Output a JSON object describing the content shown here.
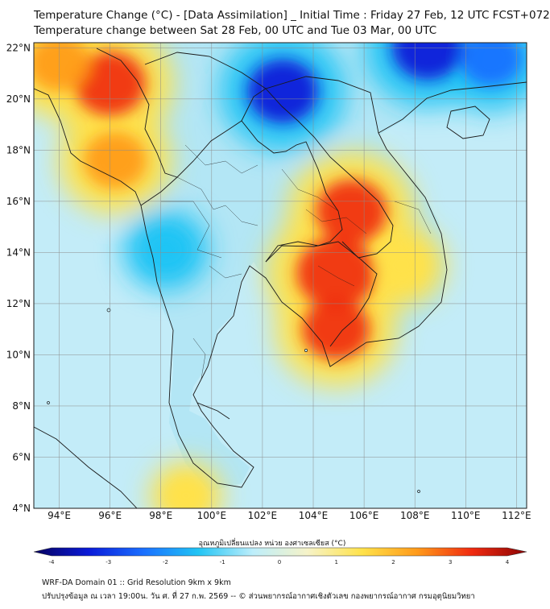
{
  "header": {
    "title_line1": "Temperature Change (°C) - [Data Assimilation] _ Initial Time : Friday 27 Feb, 12 UTC FCST+072",
    "title_line2": "Temperature change between Sat 28 Feb, 00 UTC and Tue 03 Mar, 00 UTC"
  },
  "map": {
    "lat_labels": [
      "22°N",
      "20°N",
      "18°N",
      "16°N",
      "14°N",
      "12°N",
      "10°N",
      "8°N",
      "6°N",
      "4°N"
    ],
    "lat_values": [
      22,
      20,
      18,
      16,
      14,
      12,
      10,
      8,
      6,
      4
    ],
    "lon_labels": [
      "94°E",
      "96°E",
      "98°E",
      "100°E",
      "102°E",
      "104°E",
      "106°E",
      "108°E",
      "110°E",
      "112°E"
    ],
    "lon_values": [
      94,
      96,
      98,
      100,
      102,
      104,
      106,
      108,
      110,
      112
    ],
    "lon_range": [
      93,
      112.4
    ],
    "lat_range": [
      4,
      22.2
    ],
    "colors": {
      "ocean_base": "#c3ecf8",
      "land_base": "#a9e3f4",
      "border": "#1a1a1a",
      "grid": "#8c8c8c"
    },
    "features": [
      {
        "name": "warm-myanmar-north",
        "lon": 96.0,
        "lat": 20.6,
        "delta": 3.0
      },
      {
        "name": "warm-myanmar-west",
        "lon": 94.0,
        "lat": 21.4,
        "delta": 2.5
      },
      {
        "name": "warm-myanmar-south",
        "lon": 96.2,
        "lat": 17.6,
        "delta": 2.5
      },
      {
        "name": "warm-cambodia",
        "lon": 104.9,
        "lat": 13.2,
        "delta": 3.5
      },
      {
        "name": "warm-isan",
        "lon": 105.5,
        "lat": 15.6,
        "delta": 3.0
      },
      {
        "name": "warm-mekong-south",
        "lon": 104.9,
        "lat": 11.0,
        "delta": 2.8
      },
      {
        "name": "warm-vietnam-central",
        "lon": 107.5,
        "lat": 13.5,
        "delta": 1.5
      },
      {
        "name": "warm-andaman",
        "lon": 99.0,
        "lat": 4.5,
        "delta": 1.0
      },
      {
        "name": "cold-laos-north",
        "lon": 102.8,
        "lat": 20.3,
        "delta": -3.0
      },
      {
        "name": "cold-gulf-tonkin",
        "lon": 108.5,
        "lat": 22.0,
        "delta": -3.0
      },
      {
        "name": "cold-china-east",
        "lon": 111.0,
        "lat": 21.6,
        "delta": -2.5
      },
      {
        "name": "cold-thai-west",
        "lon": 98.2,
        "lat": 14.1,
        "delta": -1.5
      }
    ]
  },
  "colorbar": {
    "title": "อุณหภูมิเปลี่ยนแปลง หน่วย องศาเซลเซียส (°C)",
    "ticks": [
      "-4",
      "-3",
      "-2",
      "-1",
      "0",
      "1",
      "2",
      "3",
      "4"
    ],
    "min": -4,
    "max": 4,
    "colors": [
      "#06015e",
      "#0a1ad8",
      "#1a6fff",
      "#21c4f4",
      "#bdeefb",
      "#f6f3c8",
      "#ffe24a",
      "#ff9a1a",
      "#f02a10",
      "#8c0404"
    ]
  },
  "footer": {
    "line1": "WRF-DA Domain 01 :: Grid Resolution 9km x 9km",
    "line2": "ปรับปรุงข้อมูล ณ เวลา 19:00น. วัน ศ. ที่ 27 ก.พ. 2569 -- © ส่วนพยากรณ์อากาศเชิงตัวเลข กองพยากรณ์อากาศ กรมอุตุนิยมวิทยา"
  }
}
